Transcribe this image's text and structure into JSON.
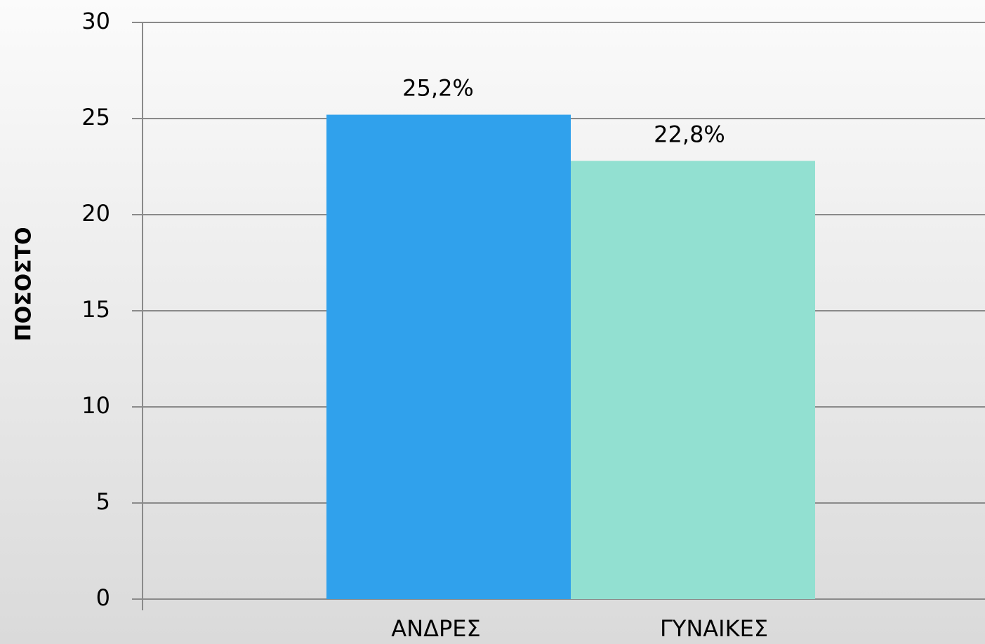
{
  "chart_data": {
    "type": "bar",
    "y_label": "ΠΟΣΟΣΤΟ",
    "categories": [
      "ΑΝΔΡΕΣ",
      "ΓΥΝΑΙΚΕΣ"
    ],
    "values": [
      25.2,
      22.8
    ],
    "value_labels": [
      "25,2%",
      "22,8%"
    ],
    "colors": [
      "#30a1ec",
      "#92e0d1"
    ],
    "ylim": [
      0,
      30
    ],
    "yticks": [
      0,
      5,
      10,
      15,
      20,
      25,
      30
    ],
    "grid": true
  }
}
